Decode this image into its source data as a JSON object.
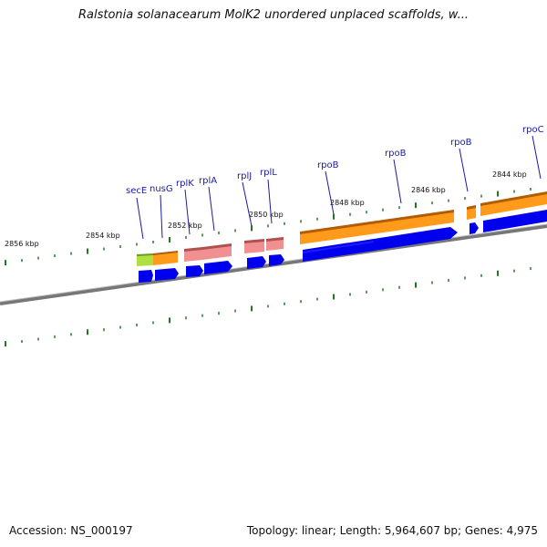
{
  "title": "Ralstonia solanacearum MolK2 unordered unplaced scaffolds, w...",
  "footer": {
    "accession": "Accession: NS_000197",
    "summary": "Topology: linear; Length: 5,964,607 bp; Genes: 4,975"
  },
  "kbp_labels": [
    {
      "id": "kbp-2856",
      "text": "2856 kbp"
    },
    {
      "id": "kbp-2854",
      "text": "2854 kbp"
    },
    {
      "id": "kbp-2852",
      "text": "2852 kbp"
    },
    {
      "id": "kbp-2850",
      "text": "2850 kbp"
    },
    {
      "id": "kbp-2848",
      "text": "2848 kbp"
    },
    {
      "id": "kbp-2846",
      "text": "2846 kbp"
    },
    {
      "id": "kbp-2844",
      "text": "2844 kbp"
    }
  ],
  "genes": [
    {
      "id": "secE",
      "label": "secE",
      "color": "#b0e040"
    },
    {
      "id": "nusG",
      "label": "nusG",
      "color": "#ff9a1a"
    },
    {
      "id": "rplK",
      "label": "rplK",
      "color": "#f09090"
    },
    {
      "id": "rplA",
      "label": "rplA",
      "color": "#f09090"
    },
    {
      "id": "rplJ",
      "label": "rplJ",
      "color": "#f09090"
    },
    {
      "id": "rplL",
      "label": "rplL",
      "color": "#f09090"
    },
    {
      "id": "rpoB-1",
      "label": "rpoB",
      "color": "#ff9a1a"
    },
    {
      "id": "rpoB-2",
      "label": "rpoB",
      "color": "#ff9a1a"
    },
    {
      "id": "rpoB-3",
      "label": "rpoB",
      "color": "#ff9a1a"
    },
    {
      "id": "rpoC",
      "label": "rpoC",
      "color": "#ff9a1a"
    }
  ],
  "colors": {
    "cds": "#0000ee",
    "tick": "#1f7a1f",
    "backbone": "#777777",
    "label": "#1a1aa6"
  }
}
